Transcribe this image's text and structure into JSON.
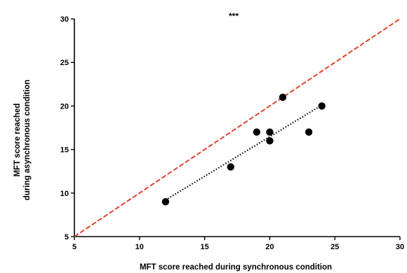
{
  "chart_data": {
    "type": "scatter",
    "xlabel": "MFT score reached during synchronous condition",
    "ylabel_lines": [
      "MFT score reached",
      "during asynchronous condition"
    ],
    "xlim": [
      5,
      30
    ],
    "ylim": [
      5,
      30
    ],
    "xticks": [
      5,
      10,
      15,
      20,
      25,
      30
    ],
    "yticks": [
      5,
      10,
      15,
      20,
      25,
      30
    ],
    "grid": false,
    "annotation": "***",
    "points": [
      {
        "x": 12,
        "y": 9
      },
      {
        "x": 17,
        "y": 13
      },
      {
        "x": 19,
        "y": 17
      },
      {
        "x": 20,
        "y": 17
      },
      {
        "x": 20,
        "y": 16
      },
      {
        "x": 21,
        "y": 21
      },
      {
        "x": 23,
        "y": 17
      },
      {
        "x": 24,
        "y": 20
      }
    ],
    "identity_line": {
      "from": [
        5,
        5
      ],
      "to": [
        30,
        30
      ],
      "color": "#e0442a",
      "style": "dashed"
    },
    "regression_line": {
      "from": [
        12,
        9.2
      ],
      "to": [
        24,
        20.1
      ],
      "color": "#000000",
      "style": "dotted"
    }
  }
}
